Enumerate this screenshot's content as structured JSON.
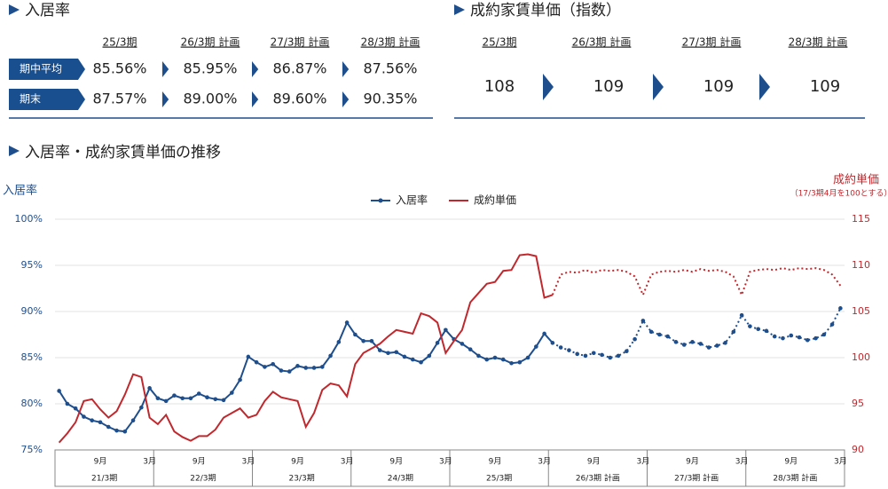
{
  "occupancy": {
    "title": "入居率",
    "columns": [
      "25/3期",
      "26/3期 計画",
      "27/3期 計画",
      "28/3期 計画"
    ],
    "rows": [
      {
        "label": "期中平均",
        "values": [
          "85.56%",
          "85.95%",
          "86.87%",
          "87.56%"
        ]
      },
      {
        "label": "期末",
        "values": [
          "87.57%",
          "89.00%",
          "89.60%",
          "90.35%"
        ]
      }
    ]
  },
  "rent": {
    "title": "成約家賃単価（指数）",
    "columns": [
      "25/3期",
      "26/3期 計画",
      "27/3期 計画",
      "28/3期 計画"
    ],
    "values": [
      108,
      109,
      109,
      109
    ]
  },
  "chart_data": {
    "type": "line",
    "title": "入居率・成約家賃単価の推移",
    "y_label": "入居率",
    "y2_label": "成約単価",
    "y2_note": "（17/3期4月を100とする）",
    "categories": [
      null,
      null,
      null,
      null,
      null,
      "9月",
      null,
      null,
      null,
      null,
      null,
      "3月",
      null,
      null,
      null,
      null,
      null,
      "9月",
      null,
      null,
      null,
      null,
      null,
      "3月",
      null,
      null,
      null,
      null,
      null,
      "9月",
      null,
      null,
      null,
      null,
      null,
      "3月",
      null,
      null,
      null,
      null,
      null,
      "9月",
      null,
      null,
      null,
      null,
      null,
      "3月",
      null,
      null,
      null,
      null,
      null,
      "9月",
      null,
      null,
      null,
      null,
      null,
      "3月",
      null,
      null,
      null,
      null,
      null,
      "9月",
      null,
      null,
      null,
      null,
      null,
      "3月",
      null,
      null,
      null,
      null,
      null,
      "9月",
      null,
      null,
      null,
      null,
      null,
      "3月",
      null,
      null,
      null,
      null,
      null,
      "9月",
      null,
      null,
      null,
      null,
      null,
      "3月"
    ],
    "fiscal_years": [
      "21/3期",
      "22/3期",
      "23/3期",
      "24/3期",
      "25/3期",
      "26/3期 計画",
      "27/3期 計画",
      "28/3期 計画"
    ],
    "dashed_from_index": 60,
    "series": [
      {
        "name": "入居率",
        "color": "#1f4e8c",
        "marker": true,
        "values": [
          81.4,
          80.0,
          79.5,
          78.6,
          78.2,
          78.0,
          77.5,
          77.1,
          77.0,
          78.2,
          79.6,
          81.7,
          80.6,
          80.3,
          80.9,
          80.6,
          80.6,
          81.1,
          80.7,
          80.5,
          80.4,
          81.2,
          82.6,
          85.1,
          84.5,
          84.0,
          84.3,
          83.6,
          83.5,
          84.1,
          83.9,
          83.9,
          84.0,
          85.2,
          86.7,
          88.8,
          87.5,
          86.8,
          86.8,
          85.8,
          85.5,
          85.6,
          85.1,
          84.8,
          84.5,
          85.2,
          86.6,
          88.0,
          87.0,
          86.5,
          85.9,
          85.2,
          84.8,
          85.0,
          84.8,
          84.4,
          84.5,
          85.0,
          86.2,
          87.6,
          86.6,
          86.1,
          85.8,
          85.4,
          85.2,
          85.5,
          85.3,
          85.0,
          85.2,
          85.7,
          87.0,
          89.0,
          87.8,
          87.5,
          87.3,
          86.7,
          86.4,
          86.7,
          86.5,
          86.1,
          86.3,
          86.6,
          87.8,
          89.6,
          88.4,
          88.1,
          87.9,
          87.3,
          87.1,
          87.4,
          87.2,
          86.9,
          87.1,
          87.5,
          88.6,
          90.35
        ]
      },
      {
        "name": "成約単価",
        "color": "#c0282d",
        "axis": "y2",
        "marker": false,
        "values": [
          90.8,
          91.8,
          93.0,
          95.3,
          95.5,
          94.4,
          93.5,
          94.2,
          96.0,
          98.2,
          97.9,
          93.5,
          92.8,
          93.8,
          92.0,
          91.4,
          91.0,
          91.5,
          91.5,
          92.2,
          93.5,
          94.0,
          94.5,
          93.5,
          93.8,
          95.3,
          96.3,
          95.7,
          95.5,
          95.3,
          92.5,
          94.0,
          96.5,
          97.2,
          97.0,
          95.8,
          99.3,
          100.5,
          101.0,
          101.5,
          102.3,
          103.0,
          102.8,
          102.6,
          104.8,
          104.5,
          103.8,
          100.5,
          101.8,
          103.0,
          106.0,
          107.0,
          108.0,
          108.2,
          109.4,
          109.5,
          111.1,
          111.2,
          111.0,
          106.5,
          106.8,
          109.0,
          109.3,
          109.2,
          109.5,
          109.2,
          109.5,
          109.4,
          109.5,
          109.3,
          108.8,
          106.8,
          109.0,
          109.3,
          109.4,
          109.3,
          109.5,
          109.3,
          109.6,
          109.4,
          109.5,
          109.3,
          108.8,
          106.8,
          109.3,
          109.5,
          109.6,
          109.5,
          109.7,
          109.5,
          109.7,
          109.6,
          109.7,
          109.5,
          109.0,
          107.8
        ]
      }
    ],
    "ylim": [
      75,
      100
    ],
    "yticks": [
      {
        "value": 75,
        "label": "75%"
      },
      {
        "value": 80,
        "label": "80%"
      },
      {
        "value": 85,
        "label": "85%"
      },
      {
        "value": 90,
        "label": "90%"
      },
      {
        "value": 95,
        "label": "95%"
      },
      {
        "value": 100,
        "label": "100%"
      }
    ],
    "y2lim": [
      90,
      115
    ],
    "y2ticks": [
      90,
      95,
      100,
      105,
      110,
      115
    ],
    "grid": true,
    "legend": "top"
  }
}
